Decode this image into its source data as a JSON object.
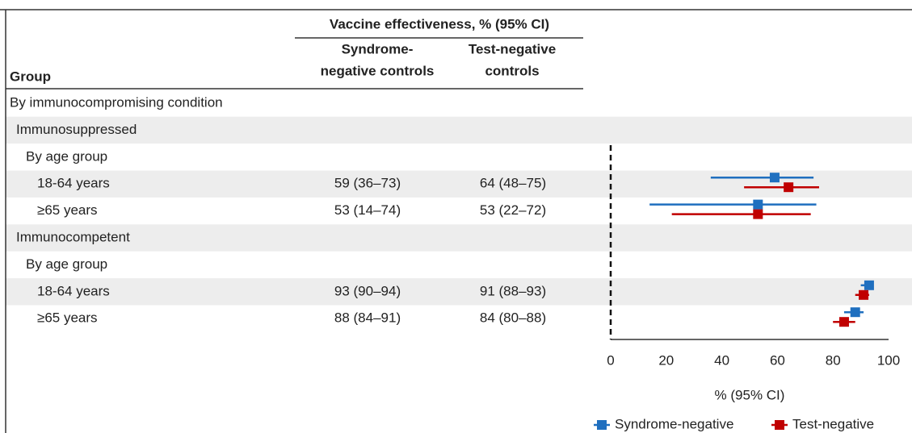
{
  "chart_data": {
    "type": "forest",
    "title": "Vaccine effectiveness, % (95% CI)",
    "group_header": "Group",
    "column_headers": [
      [
        "Syndrome-",
        "negative controls"
      ],
      [
        "Test-negative",
        "controls"
      ]
    ],
    "categories": [
      "By immunocompromising condition",
      "Immunosuppressed",
      "By age group",
      "18-64 years",
      "≥65 years",
      "Immunocompetent",
      "By age group",
      "18-64 years",
      "≥65 years"
    ],
    "series": [
      {
        "name": "Syndrome-negative",
        "color": "#1f6fbf",
        "values": [
          null,
          null,
          null,
          59,
          53,
          null,
          null,
          93,
          88
        ],
        "lower": [
          null,
          null,
          null,
          36,
          14,
          null,
          null,
          90,
          84
        ],
        "upper": [
          null,
          null,
          null,
          73,
          74,
          null,
          null,
          94,
          91
        ],
        "value_labels": [
          null,
          null,
          null,
          "59 (36–73)",
          "53 (14–74)",
          null,
          null,
          "93 (90–94)",
          "88 (84–91)"
        ]
      },
      {
        "name": "Test-negative",
        "color": "#c00000",
        "values": [
          null,
          null,
          null,
          64,
          53,
          null,
          null,
          91,
          84
        ],
        "lower": [
          null,
          null,
          null,
          48,
          22,
          null,
          null,
          88,
          80
        ],
        "upper": [
          null,
          null,
          null,
          75,
          72,
          null,
          null,
          93,
          88
        ],
        "value_labels": [
          null,
          null,
          null,
          "64 (48–75)",
          "53 (22–72)",
          null,
          null,
          "91 (88–93)",
          "84 (80–88)"
        ]
      }
    ],
    "xlim": [
      0,
      100
    ],
    "xticks": [
      0,
      20,
      40,
      60,
      80,
      100
    ],
    "xlabel": "% (95% CI)",
    "legend": "bottom"
  }
}
